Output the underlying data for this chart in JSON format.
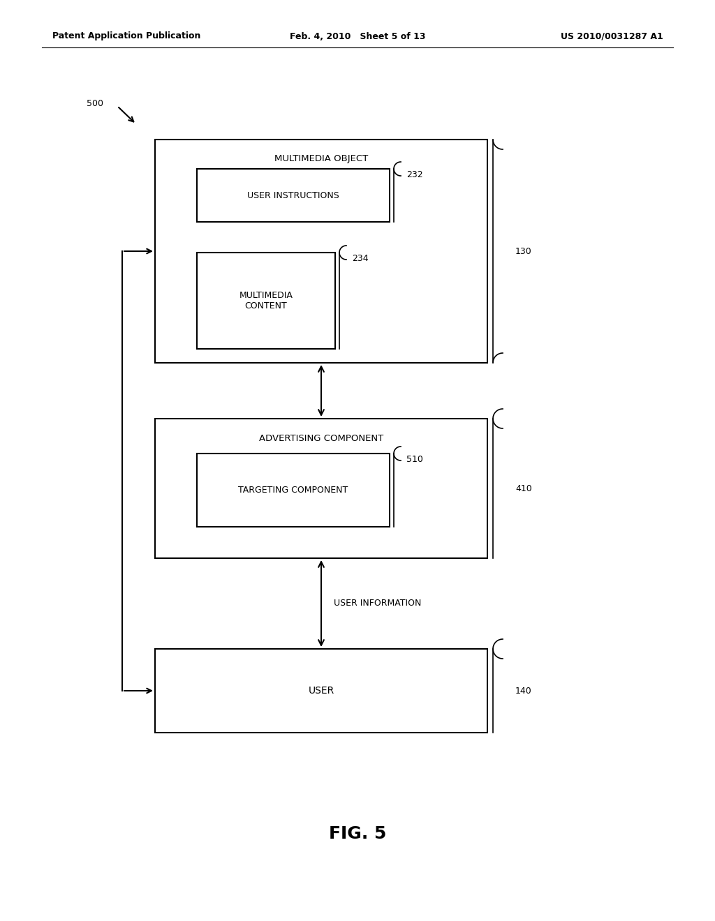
{
  "background_color": "#ffffff",
  "header_left": "Patent Application Publication",
  "header_center": "Feb. 4, 2010   Sheet 5 of 13",
  "header_right": "US 2010/0031287 A1",
  "fig_label": "FIG. 5",
  "label_500": "500",
  "label_130": "130",
  "label_232": "232",
  "label_234": "234",
  "label_410": "410",
  "label_510": "510",
  "label_140": "140",
  "user_info_label": "USER INFORMATION",
  "mm_obj_label": "MULTIMEDIA OBJECT",
  "ad_comp_label": "ADVERTISING COMPONENT",
  "user_label": "USER",
  "ui_label": "USER INSTRUCTIONS",
  "mc_label": "MULTIMEDIA\nCONTENT",
  "tc_label": "TARGETING COMPONENT",
  "font_size_box": 9,
  "font_size_header": 8.5,
  "font_size_fig": 18
}
